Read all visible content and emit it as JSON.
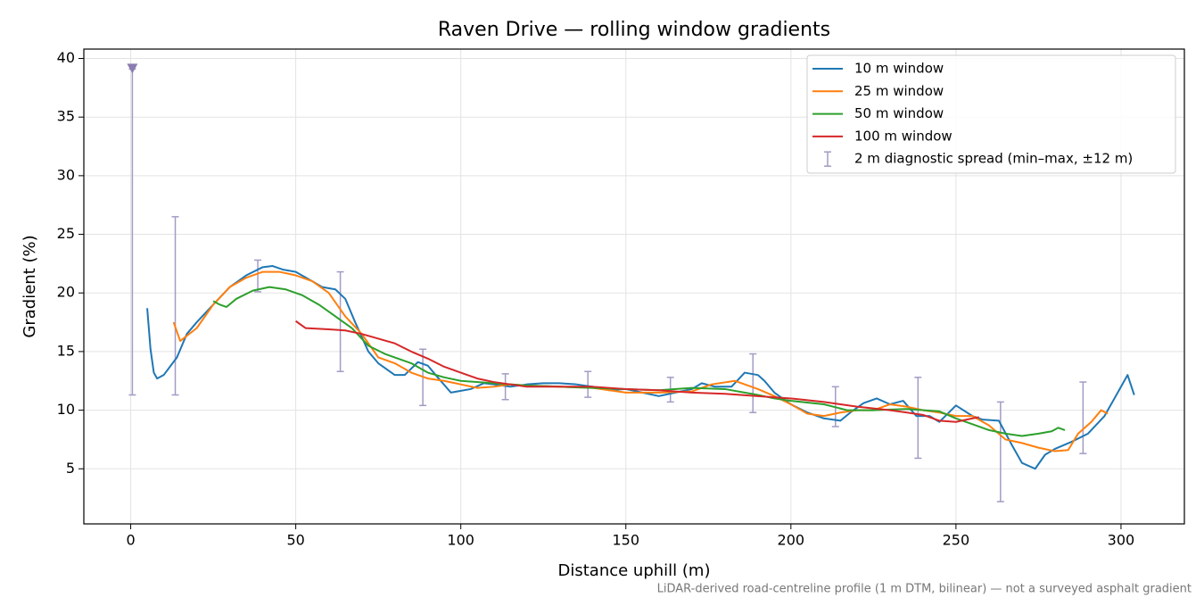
{
  "chart_data": {
    "type": "line",
    "title": "Raven Drive — rolling window gradients",
    "x_label": "Distance uphill (m)",
    "y_label": "Gradient (%)",
    "footnote": "LiDAR-derived road-centreline profile (1 m DTM, bilinear) — not a surveyed asphalt gradient",
    "xlim": [
      -14.2,
      319.2
    ],
    "ylim": [
      0.3,
      40.8
    ],
    "xticks": [
      0,
      50,
      100,
      150,
      200,
      250,
      300
    ],
    "yticks": [
      5,
      10,
      15,
      20,
      25,
      30,
      35,
      40
    ],
    "grid": true,
    "legend": "upper right",
    "series": [
      {
        "name": "10 m window",
        "color": "#1f77b4",
        "x": [
          5,
          6,
          7,
          8,
          10,
          14,
          17,
          20,
          25,
          30,
          35,
          40,
          43,
          46,
          50,
          55,
          58,
          62,
          65,
          68,
          72,
          75,
          80,
          83,
          87,
          90,
          93,
          97,
          103,
          107,
          110,
          115,
          120,
          125,
          130,
          135,
          140,
          145,
          150,
          155,
          160,
          165,
          170,
          173,
          177,
          182,
          186,
          190,
          192,
          195,
          200,
          205,
          210,
          215,
          218,
          222,
          226,
          230,
          234,
          238,
          242,
          245,
          250,
          255,
          258,
          263,
          267,
          270,
          274,
          277,
          280,
          285,
          290,
          295,
          298,
          302,
          304
        ],
        "values": [
          18.7,
          15.2,
          13.2,
          12.7,
          13,
          14.5,
          16.5,
          17.5,
          19,
          20.5,
          21.5,
          22.2,
          22.3,
          22,
          21.8,
          21,
          20.5,
          20.3,
          19.5,
          17.5,
          15,
          14,
          13,
          13,
          14.1,
          13.8,
          12.8,
          11.5,
          11.8,
          12.3,
          12.2,
          12,
          12.2,
          12.3,
          12.3,
          12.2,
          12,
          11.7,
          11.8,
          11.5,
          11.2,
          11.5,
          11.8,
          12.3,
          12,
          12,
          13.2,
          13,
          12.5,
          11.5,
          10.5,
          9.8,
          9.3,
          9.1,
          9.8,
          10.6,
          11,
          10.5,
          10.8,
          9.5,
          9.5,
          9,
          10.4,
          9.5,
          9.2,
          9.1,
          7,
          5.5,
          5,
          6.2,
          6.7,
          7.3,
          8,
          9.5,
          11,
          13,
          11.3
        ]
      },
      {
        "name": "25 m window",
        "color": "#ff7f0e",
        "x": [
          13,
          15,
          20,
          25,
          30,
          35,
          40,
          45,
          50,
          55,
          60,
          65,
          70,
          75,
          80,
          85,
          90,
          95,
          100,
          105,
          110,
          115,
          120,
          130,
          140,
          150,
          160,
          170,
          176,
          183,
          190,
          195,
          200,
          205,
          210,
          215,
          220,
          225,
          230,
          235,
          240,
          245,
          250,
          255,
          260,
          265,
          270,
          275,
          280,
          284,
          287,
          291,
          294,
          296
        ],
        "values": [
          17.5,
          15.9,
          17,
          19,
          20.5,
          21.3,
          21.8,
          21.8,
          21.5,
          21,
          20,
          18,
          16.5,
          14.5,
          14,
          13.2,
          12.7,
          12.5,
          12.2,
          11.9,
          12,
          12.2,
          12.1,
          12,
          11.9,
          11.5,
          11.5,
          11.6,
          12.2,
          12.5,
          11.8,
          11.2,
          10.5,
          9.7,
          9.5,
          9.8,
          10,
          10,
          10.5,
          10.3,
          10,
          9.8,
          9.5,
          9.5,
          8.7,
          7.5,
          7.2,
          6.8,
          6.5,
          6.6,
          8,
          9,
          10,
          9.7
        ]
      },
      {
        "name": "50 m window",
        "color": "#2ca02c",
        "x": [
          25,
          27,
          29,
          32,
          37,
          42,
          47,
          52,
          57,
          62,
          67,
          72,
          77,
          85,
          90,
          95,
          100,
          110,
          120,
          130,
          140,
          150,
          160,
          170,
          180,
          190,
          195,
          200,
          210,
          217,
          225,
          235,
          245,
          250,
          255,
          260,
          265,
          270,
          275,
          279,
          281,
          283
        ],
        "values": [
          19.3,
          19,
          18.8,
          19.5,
          20.2,
          20.5,
          20.3,
          19.8,
          19,
          18,
          17,
          15.5,
          14.8,
          14,
          13.2,
          12.8,
          12.5,
          12.3,
          12.1,
          12,
          11.9,
          11.8,
          11.7,
          11.9,
          11.8,
          11.3,
          11,
          10.8,
          10.5,
          10,
          10,
          10.1,
          9.9,
          9.3,
          8.8,
          8.3,
          8,
          7.8,
          8,
          8.2,
          8.5,
          8.3
        ]
      },
      {
        "name": "100 m window",
        "color": "#d62728",
        "x": [
          50,
          53,
          60,
          65,
          70,
          75,
          80,
          85,
          90,
          95,
          100,
          105,
          110,
          115,
          120,
          130,
          140,
          150,
          160,
          170,
          180,
          190,
          200,
          210,
          220,
          230,
          240,
          245,
          250,
          255,
          257
        ],
        "values": [
          17.6,
          17,
          16.9,
          16.8,
          16.5,
          16.1,
          15.7,
          15,
          14.4,
          13.7,
          13.2,
          12.7,
          12.4,
          12.2,
          12,
          12,
          12,
          11.8,
          11.7,
          11.5,
          11.4,
          11.2,
          11,
          10.7,
          10.3,
          10,
          9.6,
          9.1,
          9,
          9.3,
          9.4
        ]
      }
    ],
    "errorbars": {
      "name": "2 m diagnostic spread (min–max, ±12 m)",
      "color": "#a39bc4",
      "marker_color": "#8a7cb0",
      "x": [
        0.5,
        13.5,
        38.5,
        63.5,
        88.5,
        113.5,
        138.5,
        163.5,
        188.5,
        213.5,
        238.5,
        263.5,
        288.5
      ],
      "low": [
        11.3,
        11.3,
        20.1,
        13.3,
        10.4,
        10.9,
        11.1,
        10.7,
        9.8,
        8.6,
        5.9,
        2.2,
        6.3
      ],
      "high": [
        39.1,
        26.5,
        22.8,
        21.8,
        15.2,
        13.1,
        13.3,
        12.8,
        14.8,
        12,
        12.8,
        10.7,
        12.4
      ]
    }
  }
}
